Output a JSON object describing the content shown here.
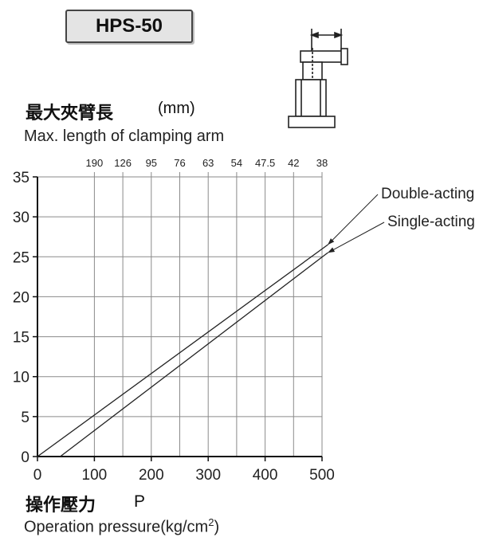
{
  "header": {
    "model": "HPS-50"
  },
  "arm_axis": {
    "label_cjk": "最大夾臂長",
    "unit": "(mm)",
    "label_en": "Max. length of clamping arm"
  },
  "pressure_axis": {
    "label_cjk": "操作壓力",
    "symbol": "P",
    "label_en_prefix": "Operation pressure(kg/cm",
    "label_en_sup": "2",
    "label_en_suffix": ")"
  },
  "chart_data": {
    "type": "line",
    "x": [
      0,
      100,
      200,
      300,
      400,
      500
    ],
    "xlim": [
      0,
      500
    ],
    "ylim": [
      0,
      35
    ],
    "x_ticks": [
      "0",
      "100",
      "200",
      "300",
      "400",
      "500"
    ],
    "y_ticks": [
      "0",
      "5",
      "10",
      "15",
      "20",
      "25",
      "30",
      "35"
    ],
    "top_axis": {
      "positions": [
        100,
        150,
        200,
        250,
        300,
        350,
        400,
        450,
        500
      ],
      "labels": [
        "190",
        "126",
        "95",
        "76",
        "63",
        "54",
        "47.5",
        "42",
        "38"
      ]
    },
    "grid": true,
    "series": [
      {
        "name": "Double-acting",
        "x": [
          0,
          510
        ],
        "y": [
          0,
          26.5
        ]
      },
      {
        "name": "Single-acting",
        "x": [
          40,
          510
        ],
        "y": [
          0,
          25.5
        ]
      }
    ],
    "colors": {
      "grid": "#8a8a8a",
      "axis": "#111111",
      "line": "#222222"
    }
  }
}
